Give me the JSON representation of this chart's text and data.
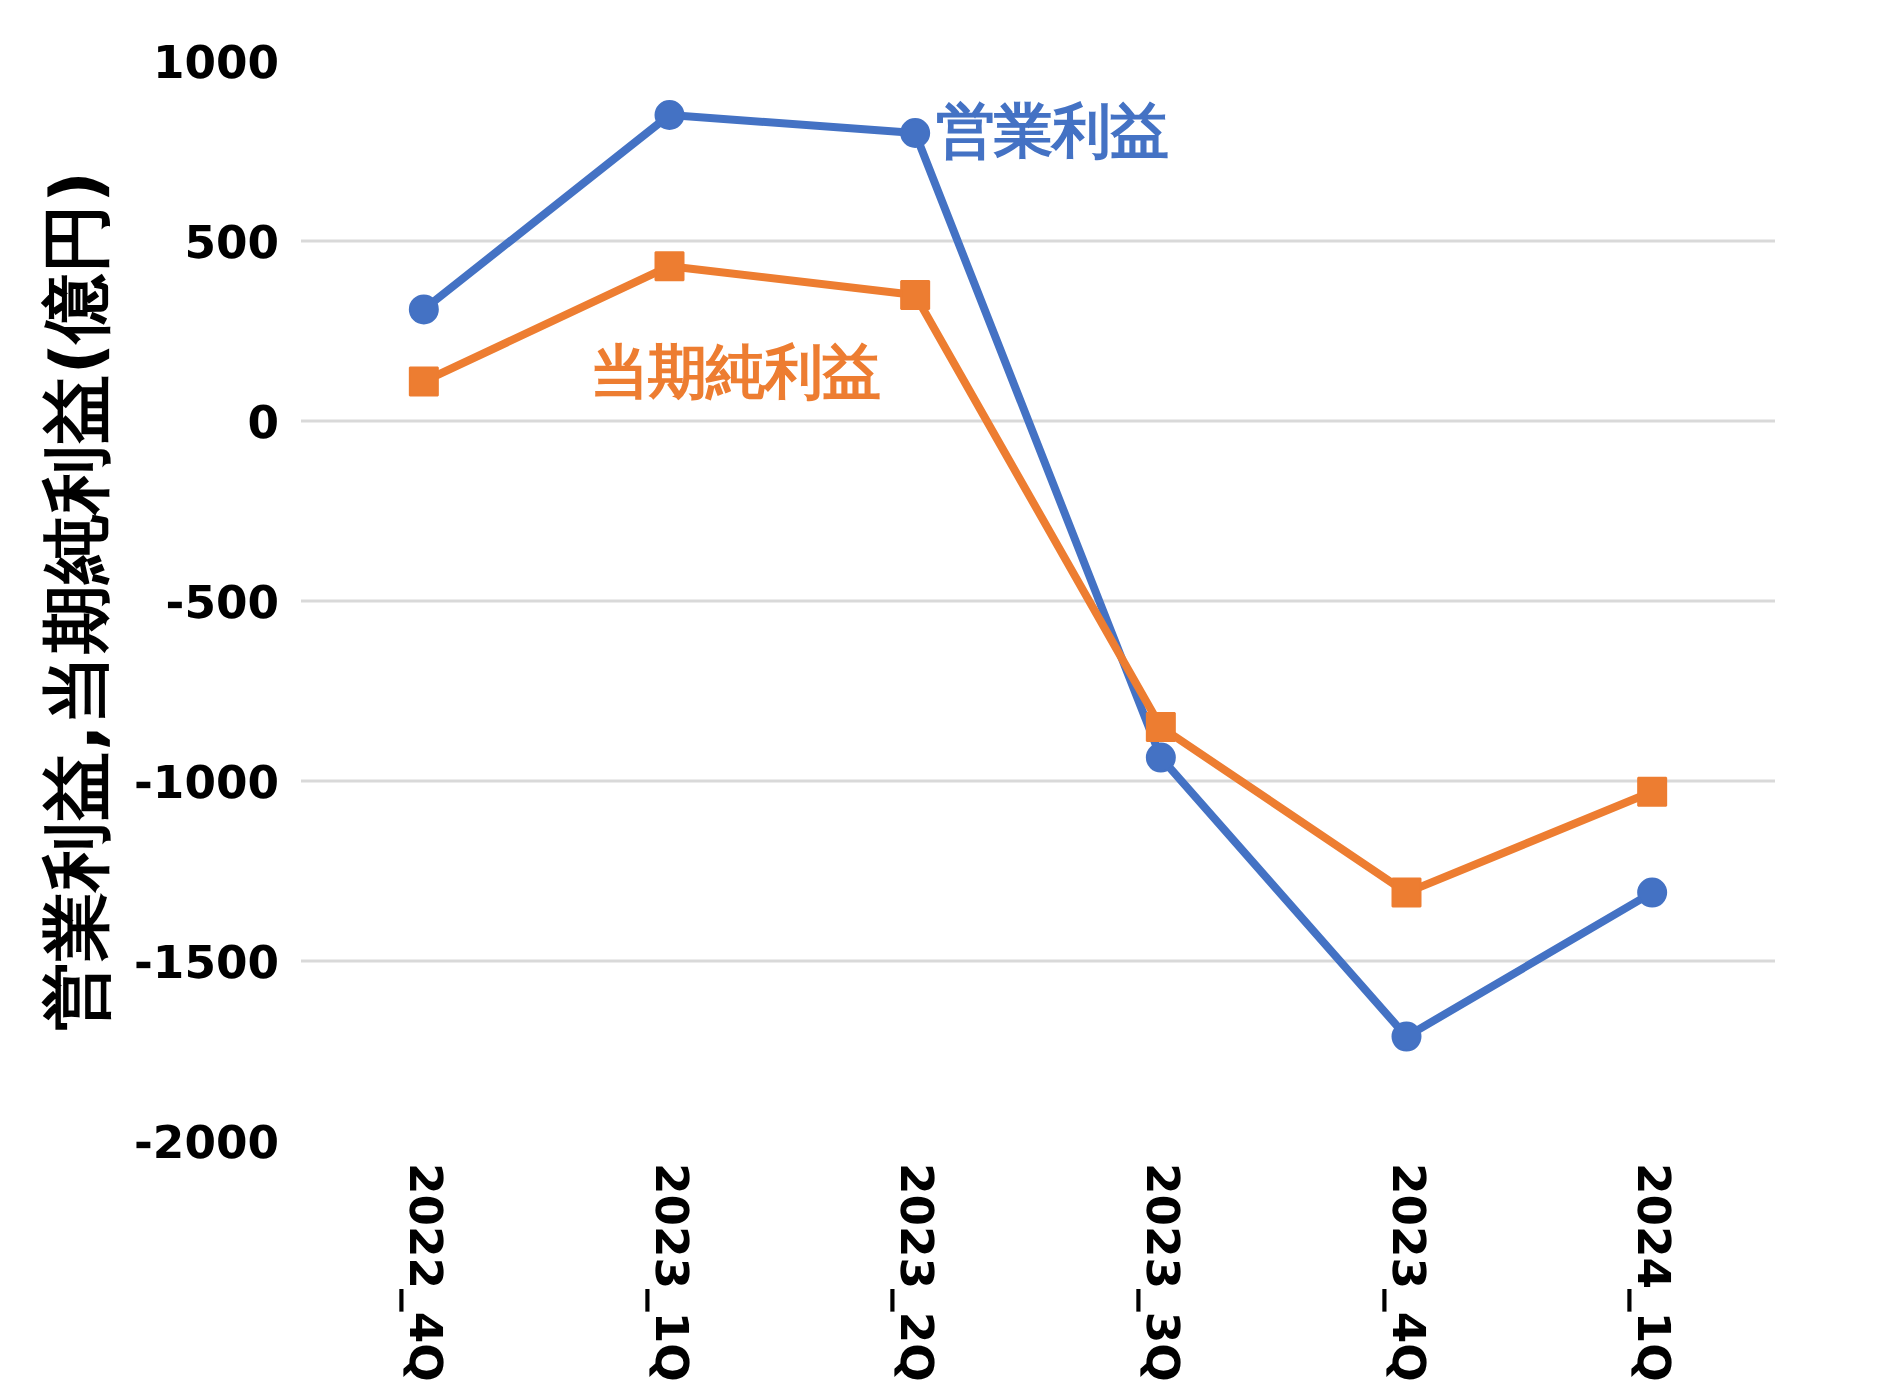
{
  "chart_data": {
    "type": "line",
    "ylabel": "営業利益,当期純利益(億円)",
    "categories": [
      "2022_4Q",
      "2023_1Q",
      "2023_2Q",
      "2023_3Q",
      "2023_4Q",
      "2024_1Q"
    ],
    "series": [
      {
        "name": "営業利益",
        "color": "#4472c4",
        "marker": "circle",
        "values": [
          310,
          850,
          800,
          -935,
          -1710,
          -1310
        ]
      },
      {
        "name": "当期純利益",
        "color": "#ed7d31",
        "marker": "square",
        "values": [
          110,
          430,
          350,
          -850,
          -1310,
          -1030
        ]
      }
    ],
    "ylim": [
      -2000,
      1000
    ],
    "yticks": [
      -2000,
      -1500,
      -1000,
      -500,
      0,
      500,
      1000
    ],
    "grid": "y",
    "line_style": "solid"
  }
}
